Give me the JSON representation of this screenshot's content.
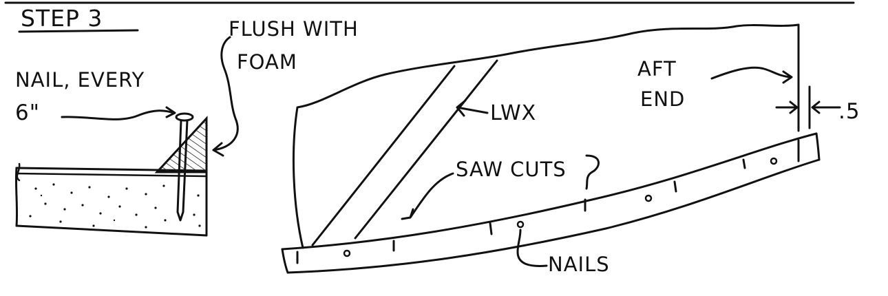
{
  "step_title": "STEP 3",
  "left_detail": {
    "nail_label_line1": "NAIL, EVERY",
    "nail_label_line2": "6\"",
    "flush_label_line1": "FLUSH WITH",
    "flush_label_line2": "FOAM"
  },
  "right_detail": {
    "lwx_label": "LWX",
    "aft_label_line1": "AFT",
    "aft_label_line2": "END",
    "dimension_label": ".5",
    "saw_cuts_label": "SAW CUTS",
    "nails_label": "NAILS"
  },
  "colors": {
    "ink": "#111111",
    "paper": "#ffffff"
  }
}
